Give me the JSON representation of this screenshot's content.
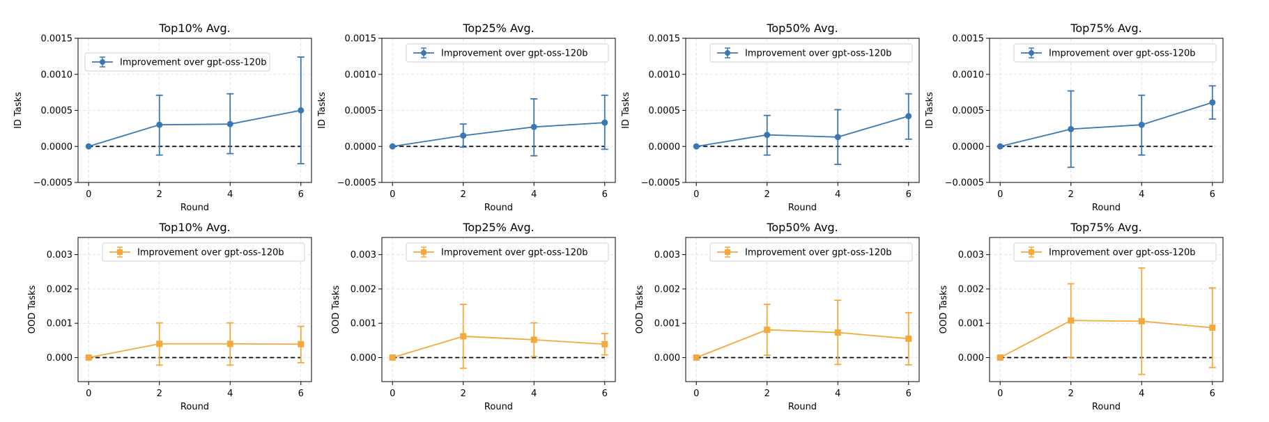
{
  "chart_data": [
    {
      "type": "line",
      "title": "Top10% Avg.",
      "xlabel": "Round",
      "ylabel": "ID Tasks",
      "legend_location": "top-left",
      "xlim": [
        -0.3,
        6.3
      ],
      "ylim": [
        -0.0005,
        0.0015
      ],
      "xticks": [
        0,
        2,
        4,
        6
      ],
      "ytick_labels": [
        "−0.0005",
        "0.0000",
        "0.0005",
        "0.0010",
        "0.0015"
      ],
      "yticks": [
        -0.0005,
        0,
        0.0005,
        0.001,
        0.0015
      ],
      "grid": true,
      "baseline": 0,
      "series": [
        {
          "name": "Improvement over gpt-oss-120b",
          "marker": "circle",
          "color": "#3a78b4",
          "x": [
            0,
            2,
            4,
            6
          ],
          "y": [
            0,
            0.0003,
            0.00031,
            0.0005
          ],
          "err_low": [
            0,
            -0.00012,
            -0.0001,
            -0.00024
          ],
          "err_high": [
            0,
            0.00071,
            0.00073,
            0.00124
          ]
        }
      ]
    },
    {
      "type": "line",
      "title": "Top25% Avg.",
      "xlabel": "Round",
      "ylabel": "ID Tasks",
      "legend_location": "top-right",
      "xlim": [
        -0.3,
        6.3
      ],
      "ylim": [
        -0.0005,
        0.0015
      ],
      "xticks": [
        0,
        2,
        4,
        6
      ],
      "ytick_labels": [
        "−0.0005",
        "0.0000",
        "0.0005",
        "0.0010",
        "0.0015"
      ],
      "yticks": [
        -0.0005,
        0,
        0.0005,
        0.001,
        0.0015
      ],
      "grid": true,
      "baseline": 0,
      "series": [
        {
          "name": "Improvement over gpt-oss-120b",
          "marker": "circle",
          "color": "#3a78b4",
          "x": [
            0,
            2,
            4,
            6
          ],
          "y": [
            0,
            0.00015,
            0.00027,
            0.00033
          ],
          "err_low": [
            0,
            -1e-05,
            -0.00013,
            -4e-05
          ],
          "err_high": [
            0,
            0.00031,
            0.00066,
            0.00071
          ]
        }
      ]
    },
    {
      "type": "line",
      "title": "Top50% Avg.",
      "xlabel": "Round",
      "ylabel": "ID Tasks",
      "legend_location": "top-right",
      "xlim": [
        -0.3,
        6.3
      ],
      "ylim": [
        -0.0005,
        0.0015
      ],
      "xticks": [
        0,
        2,
        4,
        6
      ],
      "ytick_labels": [
        "−0.0005",
        "0.0000",
        "0.0005",
        "0.0010",
        "0.0015"
      ],
      "yticks": [
        -0.0005,
        0,
        0.0005,
        0.001,
        0.0015
      ],
      "grid": true,
      "baseline": 0,
      "series": [
        {
          "name": "Improvement over gpt-oss-120b",
          "marker": "circle",
          "color": "#3a78b4",
          "x": [
            0,
            2,
            4,
            6
          ],
          "y": [
            0,
            0.00016,
            0.00013,
            0.00042
          ],
          "err_low": [
            0,
            -0.00012,
            -0.00025,
            0.0001
          ],
          "err_high": [
            0,
            0.00043,
            0.00051,
            0.00073
          ]
        }
      ]
    },
    {
      "type": "line",
      "title": "Top75% Avg.",
      "xlabel": "Round",
      "ylabel": "ID Tasks",
      "legend_location": "top-right",
      "xlim": [
        -0.3,
        6.3
      ],
      "ylim": [
        -0.0005,
        0.0015
      ],
      "xticks": [
        0,
        2,
        4,
        6
      ],
      "ytick_labels": [
        "−0.0005",
        "0.0000",
        "0.0005",
        "0.0010",
        "0.0015"
      ],
      "yticks": [
        -0.0005,
        0,
        0.0005,
        0.001,
        0.0015
      ],
      "grid": true,
      "baseline": 0,
      "series": [
        {
          "name": "Improvement over gpt-oss-120b",
          "marker": "circle",
          "color": "#3a78b4",
          "x": [
            0,
            2,
            4,
            6
          ],
          "y": [
            0,
            0.00024,
            0.0003,
            0.00061
          ],
          "err_low": [
            0,
            -0.00029,
            -0.00012,
            0.00038
          ],
          "err_high": [
            0,
            0.00077,
            0.00071,
            0.00084
          ]
        }
      ]
    },
    {
      "type": "line",
      "title": "Top10% Avg.",
      "xlabel": "Round",
      "ylabel": "OOD Tasks",
      "legend_location": "top-right",
      "xlim": [
        -0.3,
        6.3
      ],
      "ylim": [
        -0.0007,
        0.0035
      ],
      "xticks": [
        0,
        2,
        4,
        6
      ],
      "ytick_labels": [
        "0.000",
        "0.001",
        "0.002",
        "0.003"
      ],
      "yticks": [
        0,
        0.001,
        0.002,
        0.003
      ],
      "grid": true,
      "baseline": 0,
      "series": [
        {
          "name": "Improvement over gpt-oss-120b",
          "marker": "square",
          "color": "#f4a93b",
          "x": [
            0,
            2,
            4,
            6
          ],
          "y": [
            0,
            0.0004,
            0.0004,
            0.00039
          ],
          "err_low": [
            0,
            -0.00022,
            -0.00022,
            -0.00015
          ],
          "err_high": [
            0,
            0.00101,
            0.00101,
            0.00091
          ]
        }
      ]
    },
    {
      "type": "line",
      "title": "Top25% Avg.",
      "xlabel": "Round",
      "ylabel": "OOD Tasks",
      "legend_location": "top-right",
      "xlim": [
        -0.3,
        6.3
      ],
      "ylim": [
        -0.0007,
        0.0035
      ],
      "xticks": [
        0,
        2,
        4,
        6
      ],
      "ytick_labels": [
        "0.000",
        "0.001",
        "0.002",
        "0.003"
      ],
      "yticks": [
        0,
        0.001,
        0.002,
        0.003
      ],
      "grid": true,
      "baseline": 0,
      "series": [
        {
          "name": "Improvement over gpt-oss-120b",
          "marker": "square",
          "color": "#f4a93b",
          "x": [
            0,
            2,
            4,
            6
          ],
          "y": [
            0,
            0.00062,
            0.00052,
            0.00039
          ],
          "err_low": [
            0,
            -0.00031,
            3e-05,
            8e-05
          ],
          "err_high": [
            0,
            0.00155,
            0.00101,
            0.0007
          ]
        }
      ]
    },
    {
      "type": "line",
      "title": "Top50% Avg.",
      "xlabel": "Round",
      "ylabel": "OOD Tasks",
      "legend_location": "top-right",
      "xlim": [
        -0.3,
        6.3
      ],
      "ylim": [
        -0.0007,
        0.0035
      ],
      "xticks": [
        0,
        2,
        4,
        6
      ],
      "ytick_labels": [
        "0.000",
        "0.001",
        "0.002",
        "0.003"
      ],
      "yticks": [
        0,
        0.001,
        0.002,
        0.003
      ],
      "grid": true,
      "baseline": 0,
      "series": [
        {
          "name": "Improvement over gpt-oss-120b",
          "marker": "square",
          "color": "#f4a93b",
          "x": [
            0,
            2,
            4,
            6
          ],
          "y": [
            0,
            0.00081,
            0.00073,
            0.00055
          ],
          "err_low": [
            0,
            7e-05,
            -0.0002,
            -0.00021
          ],
          "err_high": [
            0,
            0.00155,
            0.00167,
            0.00131
          ]
        }
      ]
    },
    {
      "type": "line",
      "title": "Top75% Avg.",
      "xlabel": "Round",
      "ylabel": "OOD Tasks",
      "legend_location": "top-right",
      "xlim": [
        -0.3,
        6.3
      ],
      "ylim": [
        -0.0007,
        0.0035
      ],
      "xticks": [
        0,
        2,
        4,
        6
      ],
      "ytick_labels": [
        "0.000",
        "0.001",
        "0.002",
        "0.003"
      ],
      "yticks": [
        0,
        0.001,
        0.002,
        0.003
      ],
      "grid": true,
      "baseline": 0,
      "series": [
        {
          "name": "Improvement over gpt-oss-120b",
          "marker": "square",
          "color": "#f4a93b",
          "x": [
            0,
            2,
            4,
            6
          ],
          "y": [
            0,
            0.00108,
            0.00106,
            0.00087
          ],
          "err_low": [
            0,
            1e-05,
            -0.00049,
            -0.00029
          ],
          "err_high": [
            0,
            0.00215,
            0.00261,
            0.00203
          ]
        }
      ]
    }
  ]
}
